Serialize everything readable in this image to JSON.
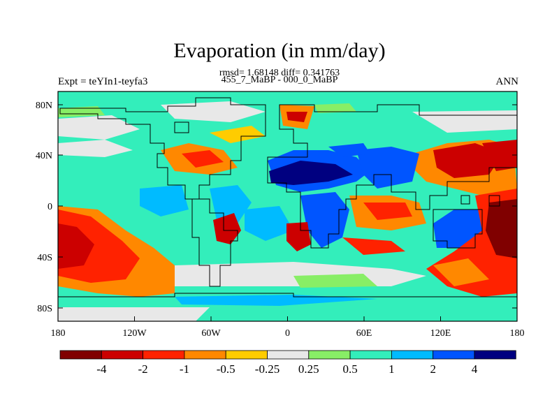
{
  "title": "Evaporation (in mm/day)",
  "stats_line": "rmsd= 1.68148 diff= 0.341763",
  "period_line": "455_7_MaBP - 000_0_MaBP",
  "experiment_label": "Expt = teYIn1-teyfa3",
  "season_label": "ANN",
  "map": {
    "lat_ticks": [
      "80N",
      "40N",
      "0",
      "40S",
      "80S"
    ],
    "lon_ticks": [
      "180",
      "120W",
      "60W",
      "0",
      "60E",
      "120E",
      "180"
    ]
  },
  "colorbar": {
    "colors": [
      "#800000",
      "#cc0000",
      "#ff2200",
      "#ff8800",
      "#ffcc00",
      "#e8e8e8",
      "#88ee66",
      "#33eebb",
      "#00bbff",
      "#0055ff",
      "#000080"
    ],
    "labels": [
      "-4",
      "-2",
      "-1",
      "-0.5",
      "-0.25",
      "0.25",
      "0.5",
      "1",
      "2",
      "4"
    ]
  }
}
